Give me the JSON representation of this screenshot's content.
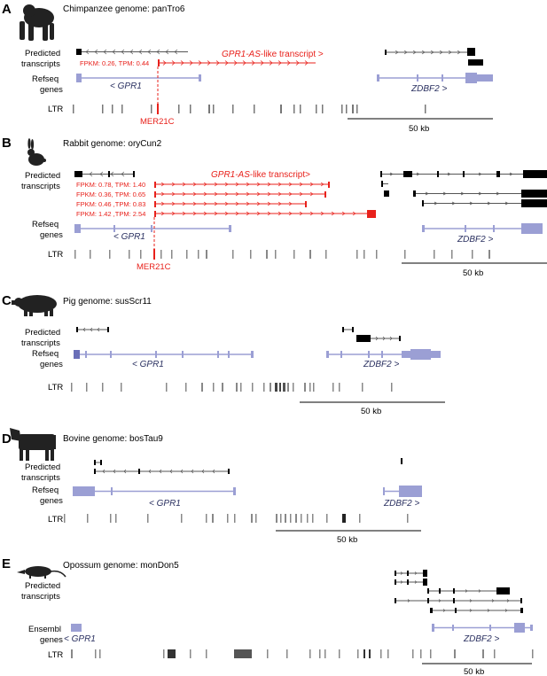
{
  "panels": [
    {
      "letter": "A",
      "title": "Chimpanzee genome: panTro6",
      "animal_icon": "chimpanzee-icon",
      "track_labels": {
        "predicted_1": "Predicted",
        "predicted_2": "transcripts",
        "genes_1": "Refseq",
        "genes_2": "genes",
        "ltr": "LTR"
      },
      "transcript_label_italic": "GPR1-AS",
      "transcript_label_rest": "-like transcript >",
      "fpkm": [
        "FPKM: 0.26, TPM: 0.44"
      ],
      "gene_left": "< GPR1",
      "gene_right": "ZDBF2 >",
      "ltr_element": "MER21C",
      "scale": "50 kb"
    },
    {
      "letter": "B",
      "title": "Rabbit genome: oryCun2",
      "animal_icon": "rabbit-icon",
      "track_labels": {
        "predicted_1": "Predicted",
        "predicted_2": "transcripts",
        "genes_1": "Refseq",
        "genes_2": "genes",
        "ltr": "LTR"
      },
      "transcript_label_italic": "GPR1-AS",
      "transcript_label_rest": "-like transcript>",
      "fpkm": [
        "FPKM: 0.78, TPM: 1.40",
        "FPKM: 0.36, TPM: 0.65",
        "FPKM: 0.46 ,TPM: 0.83",
        "FPKM: 1.42 ,TPM: 2.54"
      ],
      "gene_left": "< GPR1",
      "gene_right": "ZDBF2 >",
      "ltr_element": "MER21C",
      "scale": "50 kb"
    },
    {
      "letter": "C",
      "title": "Pig genome: susScr11",
      "animal_icon": "pig-icon",
      "track_labels": {
        "predicted_1": "Predicted",
        "predicted_2": "transcripts",
        "genes_1": "Refseq",
        "genes_2": "genes",
        "ltr": "LTR"
      },
      "gene_left": "< GPR1",
      "gene_right": "ZDBF2 >",
      "scale": "50 kb"
    },
    {
      "letter": "D",
      "title": "Bovine genome: bosTau9",
      "animal_icon": "cow-icon",
      "track_labels": {
        "predicted_1": "Predicted",
        "predicted_2": "transcripts",
        "genes_1": "Refseq",
        "genes_2": "genes",
        "ltr": "LTR"
      },
      "gene_left": "< GPR1",
      "gene_right": "ZDBF2 >",
      "scale": "50 kb"
    },
    {
      "letter": "E",
      "title": "Opossum genome: monDon5",
      "animal_icon": "opossum-icon",
      "track_labels": {
        "predicted_1": "Predicted",
        "predicted_2": "transcripts",
        "genes_1": "Ensembl",
        "genes_2": "genes",
        "ltr": "LTR"
      },
      "gene_left": "< GPR1",
      "gene_right": "ZDBF2 >",
      "scale": "50 kb"
    }
  ],
  "colors": {
    "red": "#e8211b",
    "gene": "#9b9fd4",
    "gene_dark": "#6a6fb8",
    "black": "#000000",
    "ltr": "#555555"
  }
}
